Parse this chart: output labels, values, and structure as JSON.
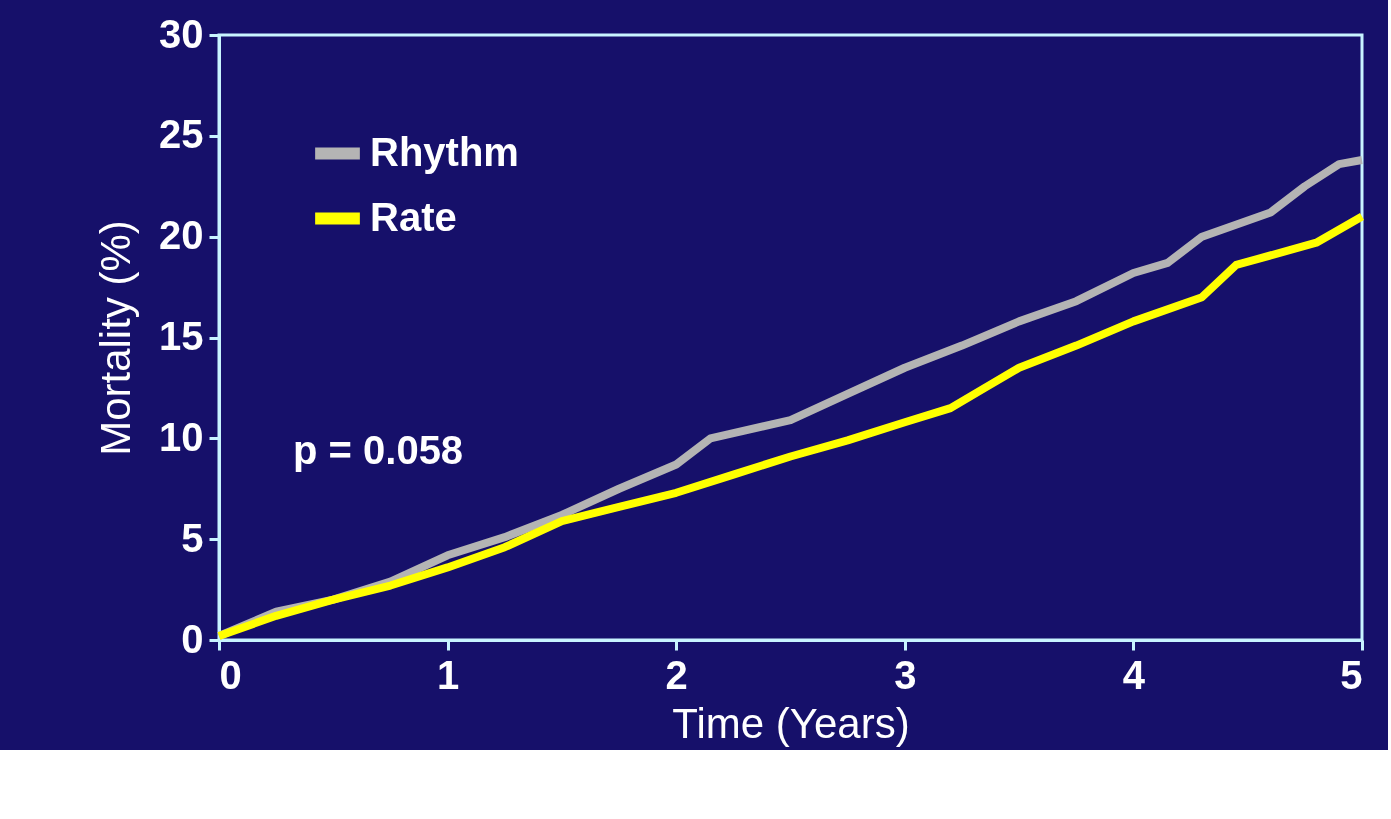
{
  "chart_data": {
    "type": "line",
    "xlabel": "Time (Years)",
    "ylabel": "Mortality (%)",
    "xlim": [
      0,
      5
    ],
    "xticks": [
      0,
      1,
      2,
      3,
      4,
      5
    ],
    "ylim": [
      0,
      30
    ],
    "yticks": [
      0,
      5,
      10,
      15,
      20,
      25,
      30
    ],
    "grid": false,
    "legend": "top left",
    "marker": "none",
    "line_style": "solid",
    "annotations": [
      "p =  0.058"
    ],
    "series": [
      {
        "name": "Rhythm",
        "color": "#b4b4b4",
        "x": [
          0,
          0.25,
          0.5,
          0.75,
          1.0,
          1.25,
          1.5,
          1.75,
          2.0,
          2.15,
          2.5,
          2.75,
          3.0,
          3.25,
          3.5,
          3.75,
          4.0,
          4.15,
          4.3,
          4.6,
          4.75,
          4.9,
          5.0
        ],
        "values": [
          0.2,
          1.4,
          2.0,
          2.9,
          4.2,
          5.1,
          6.2,
          7.5,
          8.7,
          10.0,
          10.9,
          12.2,
          13.5,
          14.6,
          15.8,
          16.8,
          18.2,
          18.7,
          20.0,
          21.2,
          22.5,
          23.6,
          23.8
        ]
      },
      {
        "name": "Rate",
        "color": "#ffff00",
        "x": [
          0,
          0.25,
          0.5,
          0.75,
          1.0,
          1.25,
          1.5,
          1.75,
          2.0,
          2.25,
          2.5,
          2.75,
          3.0,
          3.2,
          3.35,
          3.5,
          3.75,
          4.0,
          4.3,
          4.45,
          4.8,
          5.0
        ],
        "values": [
          0.2,
          1.2,
          2.0,
          2.7,
          3.6,
          4.6,
          5.9,
          6.6,
          7.3,
          8.2,
          9.1,
          9.9,
          10.8,
          11.5,
          12.5,
          13.5,
          14.6,
          15.8,
          17.0,
          18.6,
          19.7,
          21.0
        ]
      }
    ]
  }
}
